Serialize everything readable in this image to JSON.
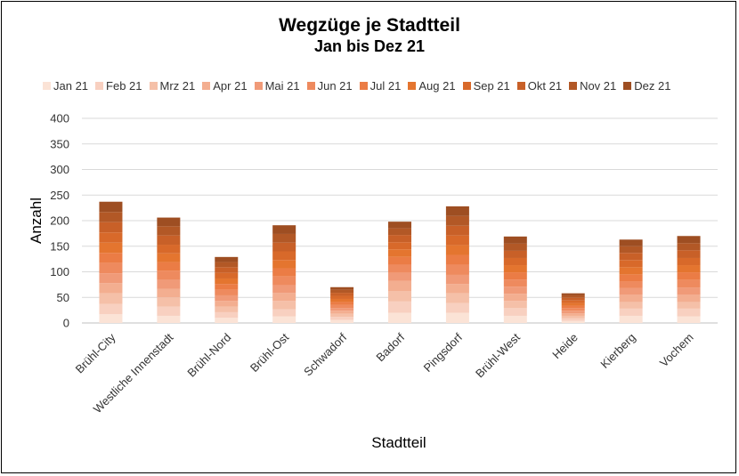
{
  "chart_data": {
    "type": "bar",
    "stacked": true,
    "title": "Wegzüge je Stadtteil",
    "subtitle": "Jan bis Dez 21",
    "xlabel": "Stadtteil",
    "ylabel": "Anzahl",
    "ylim": [
      0,
      400
    ],
    "yticks": [
      0,
      50,
      100,
      150,
      200,
      250,
      300,
      350,
      400
    ],
    "grid": true,
    "legend_position": "top",
    "categories": [
      "Brühl-City",
      "Westliche Innenstadt",
      "Brühl-Nord",
      "Brühl-Ost",
      "Schwadorf",
      "Badorf",
      "Pingsdorf",
      "Brühl-West",
      "Heide",
      "Kierberg",
      "Vochem"
    ],
    "series": [
      {
        "name": "Jan 21",
        "color": "#FBE3D6",
        "values": [
          17,
          14,
          10,
          13,
          6,
          20,
          20,
          14,
          4,
          14,
          13
        ]
      },
      {
        "name": "Feb 21",
        "color": "#F8D0C0",
        "values": [
          20,
          18,
          11,
          14,
          6,
          22,
          19,
          15,
          5,
          14,
          15
        ]
      },
      {
        "name": "Mrz 21",
        "color": "#F5C0A8",
        "values": [
          21,
          18,
          11,
          16,
          6,
          20,
          19,
          14,
          5,
          13,
          13
        ]
      },
      {
        "name": "Apr 21",
        "color": "#F3AE90",
        "values": [
          20,
          17,
          11,
          16,
          6,
          20,
          18,
          14,
          5,
          14,
          14
        ]
      },
      {
        "name": "Mai 21",
        "color": "#F09A78",
        "values": [
          19,
          17,
          11,
          15,
          5,
          16,
          18,
          14,
          5,
          13,
          14
        ]
      },
      {
        "name": "Jun 21",
        "color": "#EE8A5E",
        "values": [
          20,
          18,
          11,
          17,
          6,
          16,
          20,
          14,
          5,
          13,
          15
        ]
      },
      {
        "name": "Jul 21",
        "color": "#EB7C45",
        "values": [
          20,
          17,
          11,
          16,
          6,
          15,
          19,
          14,
          5,
          14,
          15
        ]
      },
      {
        "name": "Aug 21",
        "color": "#E4752F",
        "values": [
          20,
          17,
          11,
          16,
          6,
          15,
          19,
          14,
          5,
          14,
          14
        ]
      },
      {
        "name": "Sep 21",
        "color": "#D8692A",
        "values": [
          20,
          17,
          11,
          17,
          6,
          14,
          19,
          14,
          5,
          14,
          14
        ]
      },
      {
        "name": "Okt 21",
        "color": "#C86028",
        "values": [
          20,
          18,
          11,
          17,
          6,
          14,
          19,
          14,
          5,
          14,
          15
        ]
      },
      {
        "name": "Nov 21",
        "color": "#B25826",
        "values": [
          20,
          18,
          10,
          17,
          6,
          13,
          19,
          14,
          5,
          13,
          14
        ]
      },
      {
        "name": "Dez 21",
        "color": "#9E4E22",
        "values": [
          20,
          17,
          10,
          17,
          5,
          13,
          19,
          14,
          4,
          13,
          14
        ]
      }
    ]
  }
}
